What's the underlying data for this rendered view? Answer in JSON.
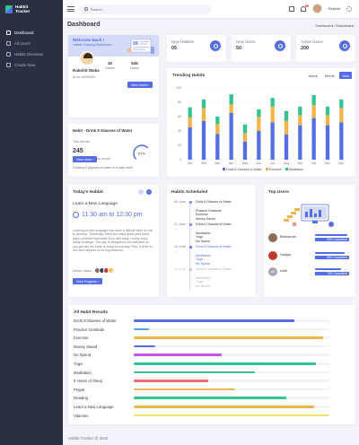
{
  "brand": {
    "line1": "Habbit",
    "line2": "Tracker"
  },
  "sidebar": {
    "items": [
      {
        "label": "Dashboard",
        "icon": "home-icon",
        "active": true
      },
      {
        "label": "All Users",
        "icon": "users-icon",
        "active": false
      },
      {
        "label": "Habits Overview",
        "icon": "list-icon",
        "active": false
      },
      {
        "label": "Create New",
        "icon": "plus-icon",
        "active": false
      }
    ]
  },
  "topbar": {
    "search_placeholder": "Search...",
    "notification_count": "3",
    "user_name": "Rakshit"
  },
  "page": {
    "title": "Dashboard",
    "breadcrumb": "Dashboard / Dashboard"
  },
  "welcome": {
    "title": "Welcome Back !",
    "subtitle": "Habbit Tracking Dashboard",
    "user_name": "Rakshit Waka",
    "user_id": "id no: #999234",
    "habits_value": "16",
    "habits_label": "Habits",
    "users_value": "545",
    "users_label": "Users",
    "button": "View Users"
  },
  "stats": [
    {
      "label": "New Habbits",
      "value": "05",
      "icon": "target-icon"
    },
    {
      "label": "New Users",
      "value": "50",
      "icon": "refresh-icon"
    },
    {
      "label": "Active Users",
      "value": "200",
      "icon": "target-icon"
    }
  ],
  "habit_card": {
    "title": "Habit - Drink 8 Glasses of Water",
    "period": "This Month",
    "value": "245",
    "change": "25",
    "change_label": "From previous month",
    "gauge_value": 67,
    "gauge_label": "67%",
    "button": "View more",
    "footer": "Drinking 8 glasses of water is a daily habit"
  },
  "trending": {
    "title": "Trending Habits",
    "tabs": [
      {
        "label": "Week",
        "active": false
      },
      {
        "label": "Month",
        "active": false
      },
      {
        "label": "Year",
        "active": true
      }
    ]
  },
  "chart_data": {
    "type": "bar",
    "stacked": true,
    "title": "Trending Habits",
    "categories": [
      "Jan",
      "Feb",
      "Mar",
      "Apr",
      "May",
      "Jun",
      "Jul",
      "Aug",
      "Sep",
      "Oct",
      "Nov",
      "Dec"
    ],
    "series": [
      {
        "name": "Drink 8 Glasses of Water",
        "color": "#556ee6",
        "values": [
          45,
          54,
          36,
          65,
          25,
          40,
          52,
          35,
          48,
          58,
          48,
          52
        ]
      },
      {
        "name": "Exercise",
        "color": "#f1b44c",
        "values": [
          14,
          18,
          14,
          12,
          12,
          20,
          22,
          19,
          14,
          18,
          14,
          20
        ]
      },
      {
        "name": "Meditation",
        "color": "#34c38f",
        "values": [
          14,
          12,
          10,
          14,
          12,
          10,
          12,
          14,
          12,
          14,
          12,
          12
        ]
      }
    ],
    "ylim": [
      0,
      100
    ],
    "yticks": [
      0,
      20,
      40,
      60,
      80,
      100
    ],
    "legend": "bottom",
    "grid": true
  },
  "todays": {
    "title": "Today's Habbit",
    "habit": "Learn a New Language",
    "time": "11:30 am to 12:30 pm",
    "description": "Learning a new language has been a difficult habit for me to develop. Thankfully, there are many great (and free!) apps out there that make it fun and easy. I really enjoy using Duolingo. The app is designed to be addictive so you get into the habit of using it everyday. Plus, it is fun to use and requires no boring textbook.",
    "active_label": "Active Users",
    "more_users": "+3",
    "button": "View Progress"
  },
  "schedule": {
    "title": "Habits Scheduled",
    "groups": [
      {
        "date": "18 June",
        "items": [
          "Drink 8 Glasses of Water",
          "Practice Gratitude",
          "Exercise",
          "Money Saved"
        ]
      },
      {
        "date": "21 June",
        "items": [
          "Drink 8 Glasses of Water",
          "Meditation",
          "Yoga",
          "No Spend"
        ]
      },
      {
        "date": "18 June",
        "items": [
          "Drink 8 Glasses of Water",
          "Meditation",
          "Yoga",
          "No Spend"
        ]
      },
      {
        "date": "18 June",
        "items": [
          "Drink 8 Glasses of Water",
          "Meditation",
          "Yoga",
          "No Spend"
        ]
      }
    ]
  },
  "top_users": {
    "title": "Top Users",
    "users": [
      {
        "name": "Bhavansh",
        "percent_label": "95% Completed",
        "value": 95,
        "avatar_color": "#8d6a5a"
      },
      {
        "name": "Sanjay",
        "percent_label": "86% Completed",
        "value": 86,
        "avatar_color": "#c0392b"
      },
      {
        "name": "Aditi",
        "percent_label": "75% Completed",
        "value": 75,
        "avatar_color": "#74788d"
      }
    ],
    "third_avatar_text": "AD"
  },
  "results": {
    "title": "All Habit Results",
    "items": [
      {
        "label": "Drink 8 Glasses of Water",
        "value": 82,
        "color": "#556ee6"
      },
      {
        "label": "Practice Gratitude",
        "value": 8,
        "color": "#50a5f1"
      },
      {
        "label": "Exercise",
        "value": 97,
        "color": "#f1b44c"
      },
      {
        "label": "Money Saved",
        "value": 11,
        "color": "#556ee6"
      },
      {
        "label": "No Spend",
        "value": 45,
        "color": "#c056e6"
      },
      {
        "label": "Yoga",
        "value": 93,
        "color": "#34c38f"
      },
      {
        "label": "Meditation",
        "value": 62,
        "color": "#34c38f"
      },
      {
        "label": "8 Hours of Sleep",
        "value": 38,
        "color": "#f46a6a"
      },
      {
        "label": "Prayer",
        "value": 52,
        "color": "#f1b44c"
      },
      {
        "label": "Reading",
        "value": 78,
        "color": "#34c38f"
      },
      {
        "label": "Learn a New Language",
        "value": 92,
        "color": "#f1b44c"
      },
      {
        "label": "Vitamins",
        "value": 100,
        "color": "#f1e36a"
      }
    ]
  },
  "footer": "Habbit Tracker @ 2020"
}
